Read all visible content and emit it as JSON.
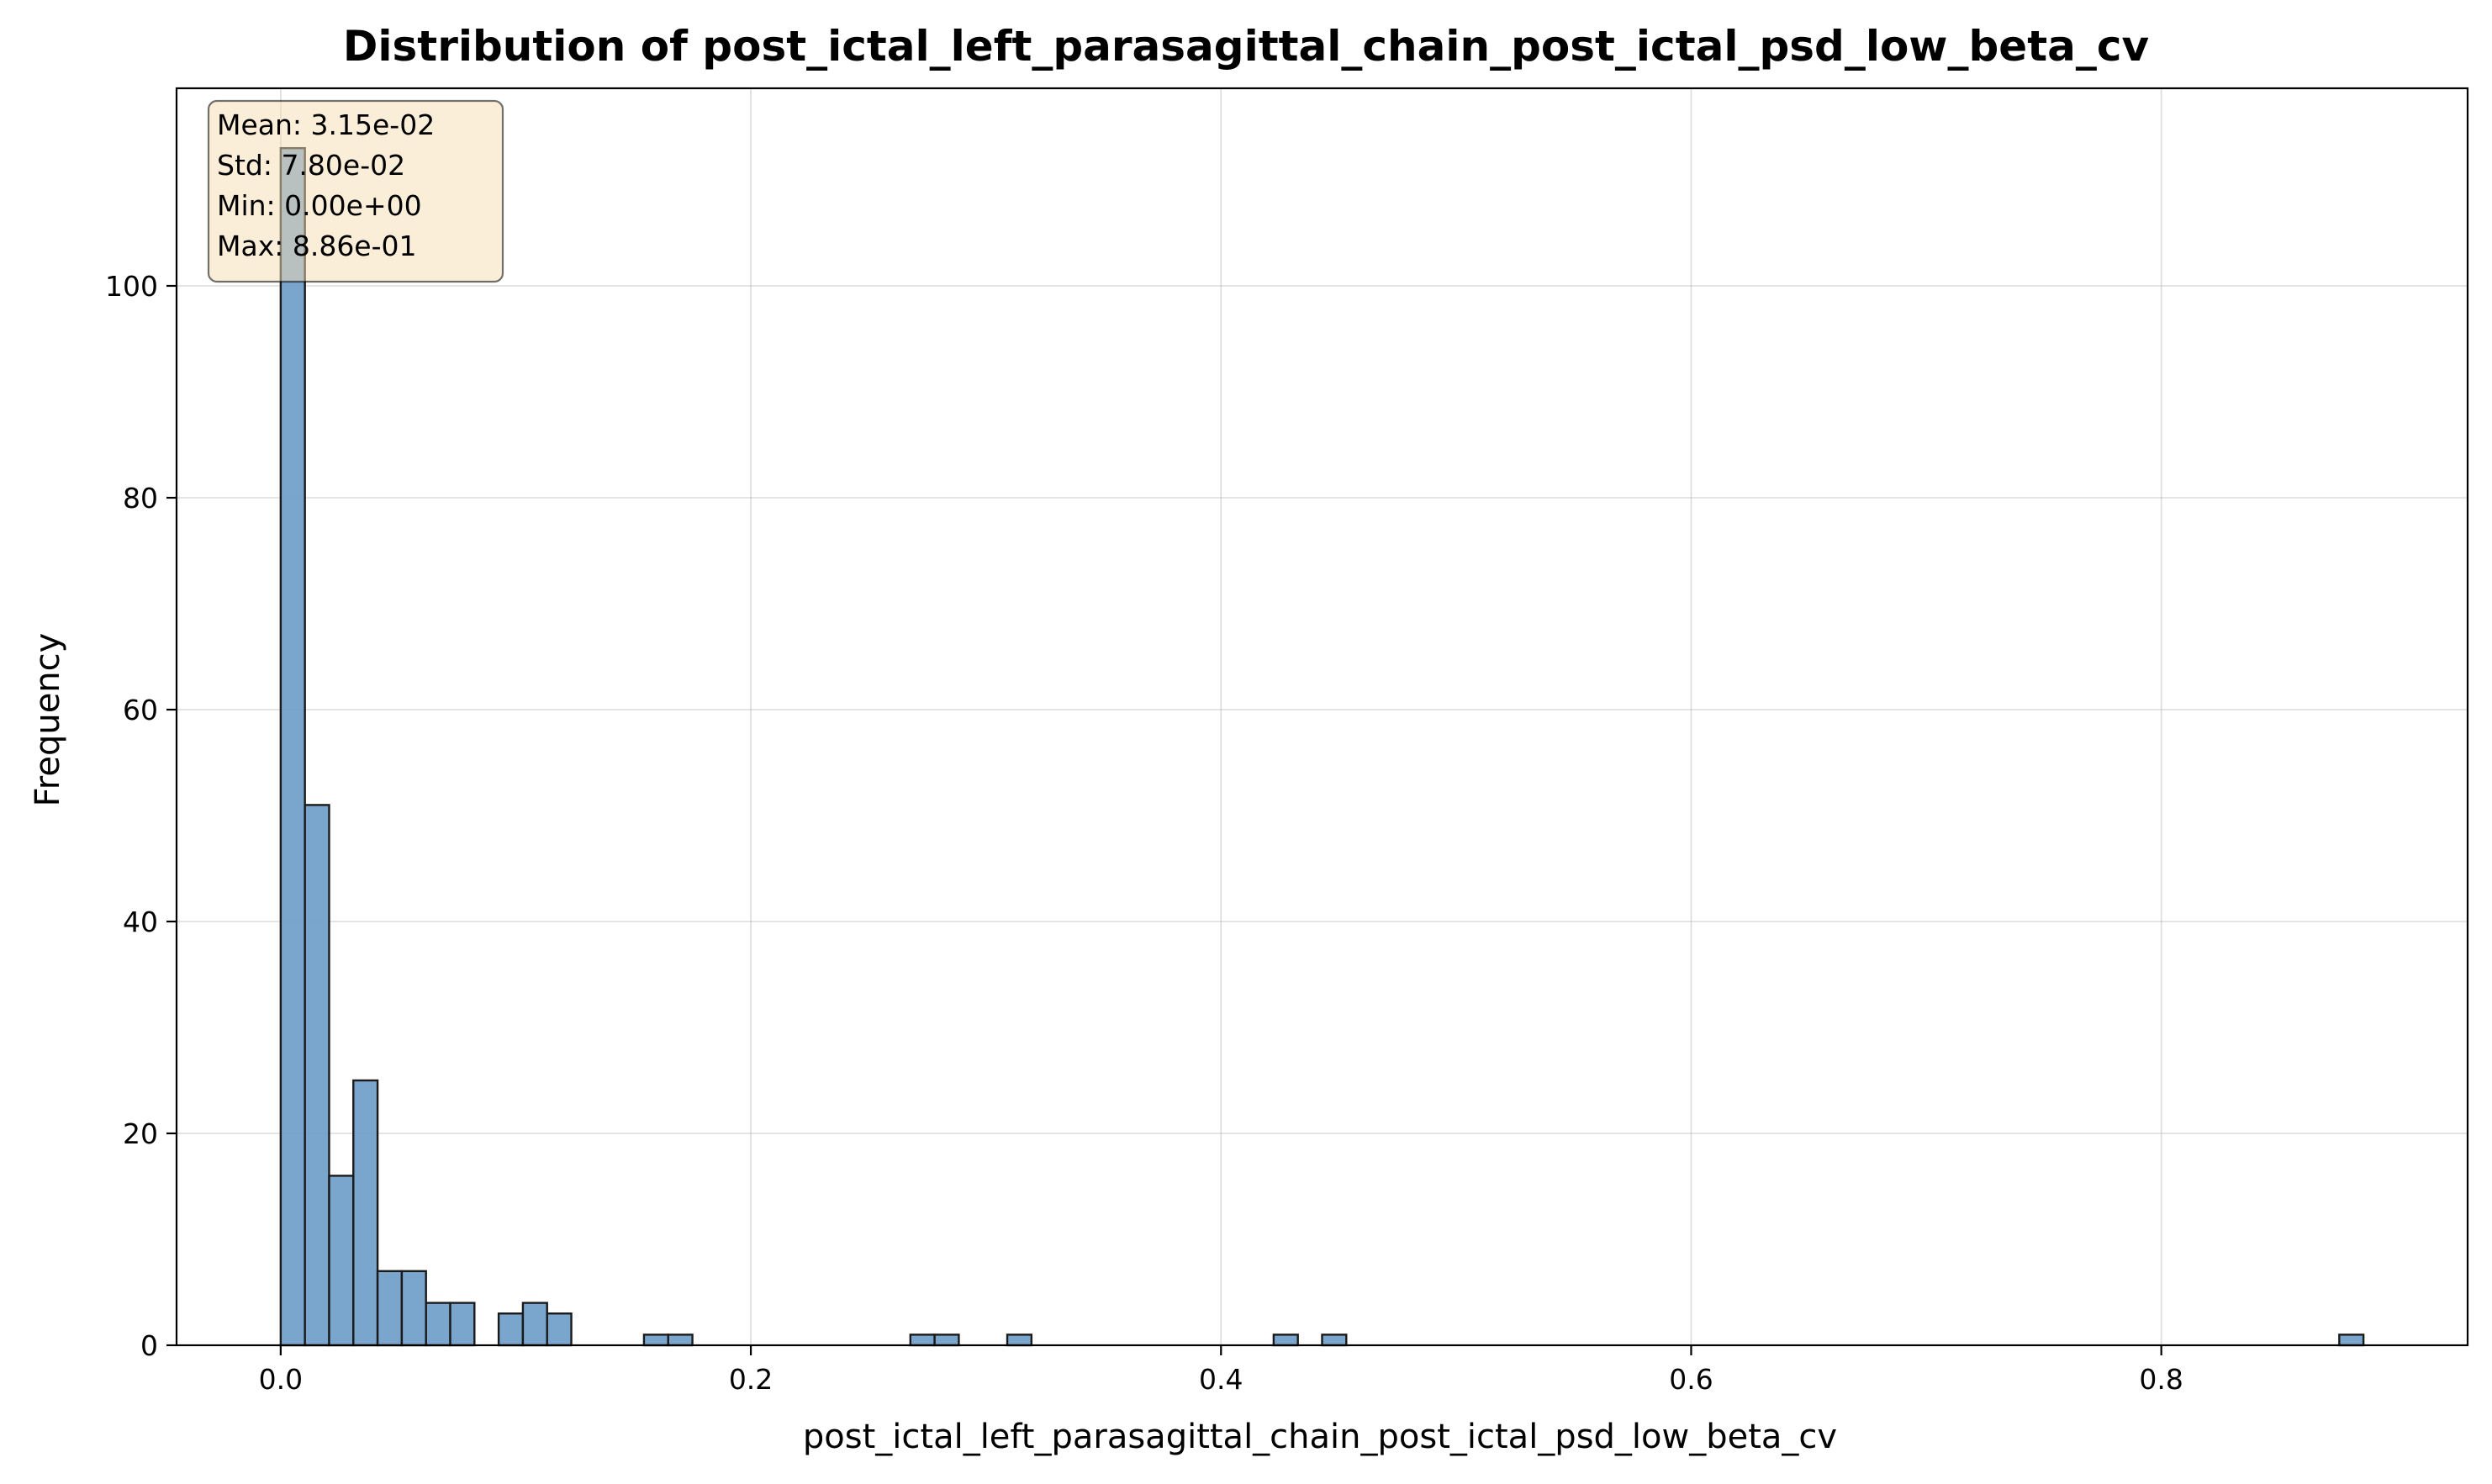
{
  "chart_data": {
    "type": "bar",
    "title": "Distribution of post_ictal_left_parasagittal_chain_post_ictal_psd_low_beta_cv",
    "xlabel": "post_ictal_left_parasagittal_chain_post_ictal_psd_low_beta_cv",
    "ylabel": "Frequency",
    "xlim": [
      -0.0443,
      0.9303
    ],
    "ylim": [
      0,
      118.65
    ],
    "x_ticks": [
      0.0,
      0.2,
      0.4,
      0.6,
      0.8
    ],
    "x_tick_labels": [
      "0.0",
      "0.2",
      "0.4",
      "0.6",
      "0.8"
    ],
    "y_ticks": [
      0,
      20,
      40,
      60,
      80,
      100
    ],
    "y_tick_labels": [
      "0",
      "20",
      "40",
      "60",
      "80",
      "100"
    ],
    "grid": true,
    "bin_range": [
      0.0,
      0.886
    ],
    "bin_count": 86,
    "bins": [
      {
        "bin": 0,
        "count": 113
      },
      {
        "bin": 1,
        "count": 51
      },
      {
        "bin": 2,
        "count": 16
      },
      {
        "bin": 3,
        "count": 25
      },
      {
        "bin": 4,
        "count": 7
      },
      {
        "bin": 5,
        "count": 7
      },
      {
        "bin": 6,
        "count": 4
      },
      {
        "bin": 7,
        "count": 4
      },
      {
        "bin": 9,
        "count": 3
      },
      {
        "bin": 10,
        "count": 4
      },
      {
        "bin": 11,
        "count": 3
      },
      {
        "bin": 15,
        "count": 1
      },
      {
        "bin": 16,
        "count": 1
      },
      {
        "bin": 26,
        "count": 1
      },
      {
        "bin": 27,
        "count": 1
      },
      {
        "bin": 30,
        "count": 1
      },
      {
        "bin": 41,
        "count": 1
      },
      {
        "bin": 43,
        "count": 1
      },
      {
        "bin": 85,
        "count": 1
      }
    ],
    "stats_box": {
      "position": "top-left",
      "lines": [
        "Mean: 3.15e-02",
        "Std: 7.80e-02",
        "Min: 0.00e+00",
        "Max: 8.86e-01"
      ]
    },
    "colors": {
      "bar_fill": "#6b9bc8",
      "bar_edge": "#1a1a1a",
      "stats_box_fill": "#f5deb3"
    }
  }
}
